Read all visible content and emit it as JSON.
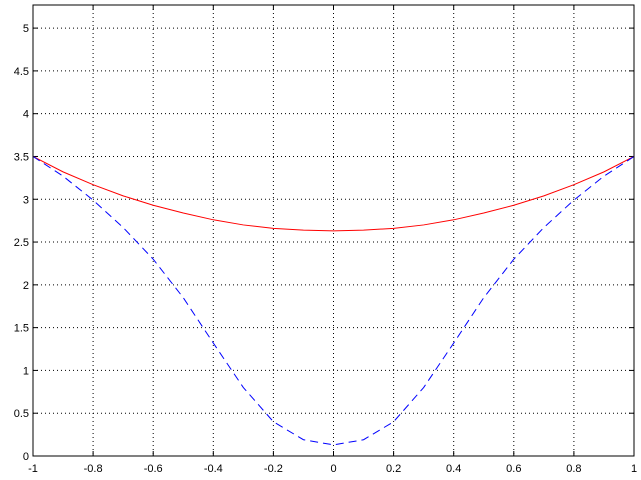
{
  "chart_data": {
    "type": "line",
    "x": [
      -1,
      -0.9,
      -0.8,
      -0.7,
      -0.6,
      -0.5,
      -0.4,
      -0.3,
      -0.2,
      -0.1,
      0,
      0.1,
      0.2,
      0.3,
      0.4,
      0.5,
      0.6,
      0.7,
      0.8,
      0.9,
      1
    ],
    "series": [
      {
        "color": "#ff0000",
        "line_style": "solid",
        "values": [
          3.5,
          3.32,
          3.17,
          3.04,
          2.93,
          2.84,
          2.76,
          2.7,
          2.66,
          2.64,
          2.63,
          2.64,
          2.66,
          2.7,
          2.76,
          2.84,
          2.93,
          3.04,
          3.17,
          3.32,
          3.5
        ]
      },
      {
        "color": "#0000ff",
        "line_style": "dashed",
        "values": [
          3.5,
          3.27,
          2.99,
          2.67,
          2.3,
          1.85,
          1.32,
          0.8,
          0.4,
          0.19,
          0.13,
          0.19,
          0.4,
          0.8,
          1.32,
          1.85,
          2.3,
          2.67,
          2.99,
          3.27,
          3.5
        ]
      }
    ],
    "xlim": [
      -1,
      1
    ],
    "ylim": [
      0,
      5.27
    ],
    "xticks": [
      -1,
      -0.8,
      -0.6,
      -0.4,
      -0.2,
      0,
      0.2,
      0.4,
      0.6,
      0.8,
      1
    ],
    "yticks": [
      0,
      0.5,
      1,
      1.5,
      2,
      2.5,
      3,
      3.5,
      4,
      4.5,
      5
    ],
    "grid": true
  }
}
